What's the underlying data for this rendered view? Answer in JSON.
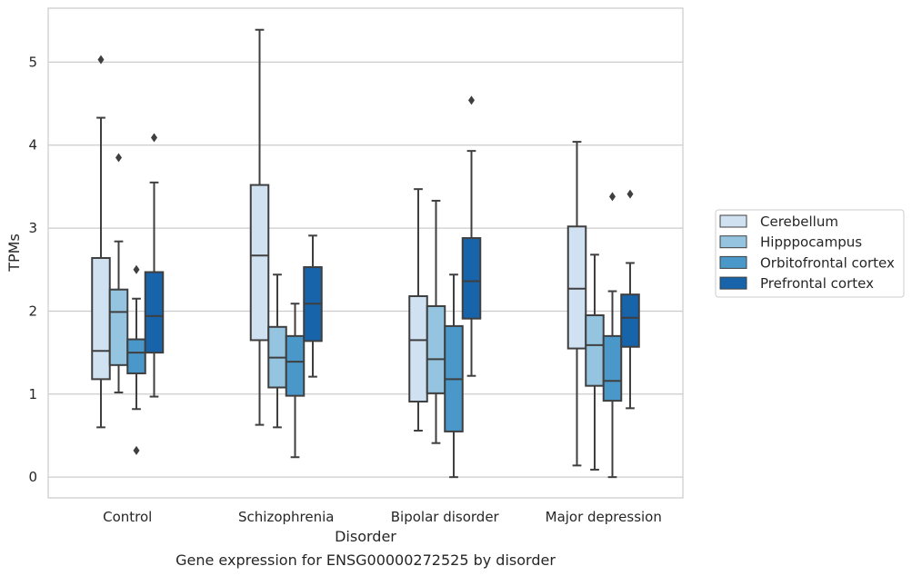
{
  "chart_data": {
    "type": "box",
    "title": "",
    "caption": "Gene expression for ENSG00000272525 by disorder",
    "xlabel": "Disorder",
    "ylabel": "TPMs",
    "ylim": [
      -0.25,
      5.65
    ],
    "yticks": [
      0,
      1,
      2,
      3,
      4,
      5
    ],
    "grid": "horizontal",
    "legend_position": "right",
    "categories": [
      "Control",
      "Schizophrenia",
      "Bipolar disorder",
      "Major depression"
    ],
    "series": [
      {
        "name": "Cerebellum",
        "color": "#d0e1f2",
        "boxes": [
          {
            "min": 0.6,
            "q1": 1.18,
            "median": 1.52,
            "q3": 2.64,
            "max": 4.33,
            "outliers": [
              5.03
            ]
          },
          {
            "min": 0.63,
            "q1": 1.65,
            "median": 2.67,
            "q3": 3.52,
            "max": 5.39,
            "outliers": []
          },
          {
            "min": 0.56,
            "q1": 0.91,
            "median": 1.65,
            "q3": 2.18,
            "max": 3.47,
            "outliers": []
          },
          {
            "min": 0.14,
            "q1": 1.55,
            "median": 2.27,
            "q3": 3.02,
            "max": 4.04,
            "outliers": []
          }
        ]
      },
      {
        "name": "Hipppocampus",
        "color": "#94c4df",
        "boxes": [
          {
            "min": 1.02,
            "q1": 1.35,
            "median": 1.99,
            "q3": 2.26,
            "max": 2.84,
            "outliers": [
              3.85
            ]
          },
          {
            "min": 0.6,
            "q1": 1.08,
            "median": 1.44,
            "q3": 1.81,
            "max": 2.44,
            "outliers": []
          },
          {
            "min": 0.41,
            "q1": 1.01,
            "median": 1.42,
            "q3": 2.06,
            "max": 3.33,
            "outliers": []
          },
          {
            "min": 0.09,
            "q1": 1.1,
            "median": 1.59,
            "q3": 1.95,
            "max": 2.68,
            "outliers": []
          }
        ]
      },
      {
        "name": "Orbitofrontal cortex",
        "color": "#4a98c9",
        "boxes": [
          {
            "min": 0.82,
            "q1": 1.25,
            "median": 1.5,
            "q3": 1.66,
            "max": 2.15,
            "outliers": [
              2.5,
              0.32
            ]
          },
          {
            "min": 0.24,
            "q1": 0.98,
            "median": 1.39,
            "q3": 1.7,
            "max": 2.09,
            "outliers": []
          },
          {
            "min": 0.0,
            "q1": 0.55,
            "median": 1.18,
            "q3": 1.82,
            "max": 2.44,
            "outliers": []
          },
          {
            "min": 0.0,
            "q1": 0.92,
            "median": 1.16,
            "q3": 1.7,
            "max": 2.24,
            "outliers": [
              3.38
            ]
          }
        ]
      },
      {
        "name": "Prefrontal cortex",
        "color": "#1764ab",
        "boxes": [
          {
            "min": 0.97,
            "q1": 1.5,
            "median": 1.94,
            "q3": 2.47,
            "max": 3.55,
            "outliers": [
              4.09
            ]
          },
          {
            "min": 1.21,
            "q1": 1.64,
            "median": 2.09,
            "q3": 2.53,
            "max": 2.91,
            "outliers": []
          },
          {
            "min": 1.22,
            "q1": 1.91,
            "median": 2.36,
            "q3": 2.88,
            "max": 3.93,
            "outliers": [
              4.54
            ]
          },
          {
            "min": 0.83,
            "q1": 1.57,
            "median": 1.92,
            "q3": 2.2,
            "max": 2.58,
            "outliers": [
              3.41
            ]
          }
        ]
      }
    ]
  }
}
